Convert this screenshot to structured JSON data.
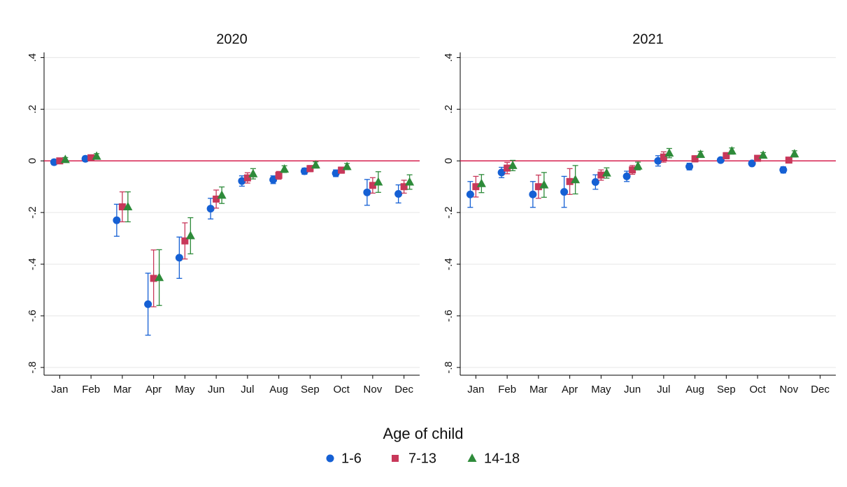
{
  "chart_data": [
    {
      "type": "errorbar-dot",
      "title": "2020",
      "categories": [
        "Jan",
        "Feb",
        "Mar",
        "Apr",
        "May",
        "Jun",
        "Jul",
        "Aug",
        "Sep",
        "Oct",
        "Nov",
        "Dec"
      ],
      "ylim": [
        -0.83,
        0.42
      ],
      "yticks": [
        {
          "value": 0.4,
          "label": ".4"
        },
        {
          "value": 0.2,
          "label": ".2"
        },
        0,
        {
          "value": -0.2,
          "label": "-.2"
        },
        {
          "value": -0.4,
          "label": "-.4"
        },
        {
          "value": -0.6,
          "label": "-.6"
        },
        {
          "value": -0.8,
          "label": "-.8"
        }
      ],
      "grid": true,
      "hline": 0,
      "hline_color": "#d6204f",
      "series": [
        {
          "name": "1-6",
          "color": "#1560d4",
          "marker": "circle",
          "values": [
            -0.005,
            0.008,
            -0.23,
            -0.555,
            -0.375,
            -0.185,
            -0.078,
            -0.073,
            -0.04,
            -0.048,
            -0.122,
            -0.128
          ],
          "errors": [
            0.01,
            0.01,
            0.062,
            0.12,
            0.08,
            0.04,
            0.02,
            0.015,
            0.012,
            0.013,
            0.05,
            0.035
          ]
        },
        {
          "name": "7-13",
          "color": "#c8385a",
          "marker": "square",
          "values": [
            0.0,
            0.012,
            -0.178,
            -0.455,
            -0.31,
            -0.148,
            -0.066,
            -0.056,
            -0.03,
            -0.036,
            -0.095,
            -0.1
          ],
          "errors": [
            0.008,
            0.01,
            0.058,
            0.11,
            0.07,
            0.035,
            0.02,
            0.015,
            0.012,
            0.012,
            0.03,
            0.025
          ]
        },
        {
          "name": "14-18",
          "color": "#2e8b3a",
          "marker": "triangle",
          "values": [
            0.005,
            0.018,
            -0.178,
            -0.452,
            -0.29,
            -0.133,
            -0.05,
            -0.032,
            -0.016,
            -0.022,
            -0.082,
            -0.082
          ],
          "errors": [
            0.008,
            0.01,
            0.058,
            0.108,
            0.07,
            0.032,
            0.02,
            0.013,
            0.012,
            0.012,
            0.04,
            0.028
          ]
        }
      ]
    },
    {
      "type": "errorbar-dot",
      "title": "2021",
      "categories": [
        "Jan",
        "Feb",
        "Mar",
        "Apr",
        "May",
        "Jun",
        "Jul",
        "Aug",
        "Sep",
        "Oct",
        "Nov",
        "Dec"
      ],
      "ylim": [
        -0.83,
        0.42
      ],
      "yticks": [
        {
          "value": 0.4,
          "label": ".4"
        },
        {
          "value": 0.2,
          "label": ".2"
        },
        0,
        {
          "value": -0.2,
          "label": "-.2"
        },
        {
          "value": -0.4,
          "label": "-.4"
        },
        {
          "value": -0.6,
          "label": "-.6"
        },
        {
          "value": -0.8,
          "label": "-.8"
        }
      ],
      "grid": true,
      "hline": 0,
      "hline_color": "#d6204f",
      "series": [
        {
          "name": "1-6",
          "color": "#1560d4",
          "marker": "circle",
          "values": [
            -0.13,
            -0.045,
            -0.13,
            -0.12,
            -0.082,
            -0.06,
            0.0,
            -0.022,
            0.003,
            -0.01,
            -0.035,
            null
          ],
          "errors": [
            0.05,
            0.02,
            0.05,
            0.06,
            0.028,
            0.02,
            0.02,
            0.013,
            0.008,
            0.008,
            0.012,
            null
          ]
        },
        {
          "name": "7-13",
          "color": "#c8385a",
          "marker": "square",
          "values": [
            -0.1,
            -0.028,
            -0.1,
            -0.08,
            -0.055,
            -0.035,
            0.015,
            0.008,
            0.02,
            0.01,
            0.003,
            null
          ],
          "errors": [
            0.04,
            0.022,
            0.045,
            0.05,
            0.02,
            0.017,
            0.02,
            0.012,
            0.012,
            0.01,
            0.008,
            null
          ]
        },
        {
          "name": "14-18",
          "color": "#2e8b3a",
          "marker": "triangle",
          "values": [
            -0.088,
            -0.018,
            -0.093,
            -0.073,
            -0.047,
            -0.02,
            0.03,
            0.025,
            0.038,
            0.022,
            0.027,
            null
          ],
          "errors": [
            0.035,
            0.02,
            0.048,
            0.055,
            0.02,
            0.015,
            0.018,
            0.012,
            0.012,
            0.01,
            0.012,
            null
          ]
        }
      ]
    }
  ],
  "legend": {
    "title": "Age of child"
  }
}
